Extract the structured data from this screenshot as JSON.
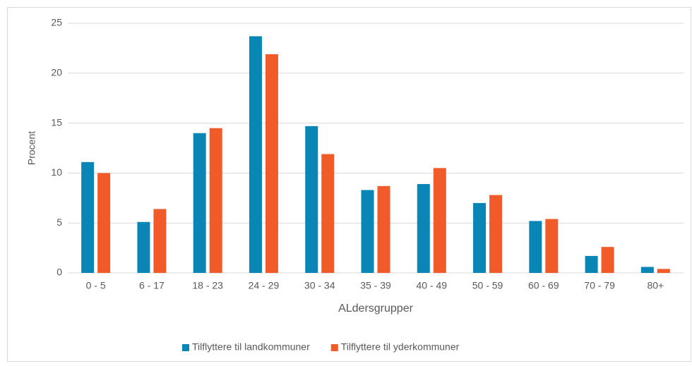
{
  "chart_data": {
    "type": "bar",
    "x_label": "ALdersgrupper",
    "y_label": "Procent",
    "categories": [
      "0 - 5",
      "6 - 17",
      "18 - 23",
      "24 - 29",
      "30 - 34",
      "35 - 39",
      "40 - 49",
      "50 - 59",
      "60 - 69",
      "70 - 79",
      "80+"
    ],
    "series": [
      {
        "name": "Tilflyttere til landkommuner",
        "color": "#0a86b6",
        "values": [
          11.1,
          5.1,
          14.0,
          23.7,
          14.7,
          8.3,
          8.9,
          7.0,
          5.2,
          1.7,
          0.6
        ]
      },
      {
        "name": "Tilflyttere til yderkommuner",
        "color": "#f15a29",
        "values": [
          10.0,
          6.4,
          14.5,
          21.9,
          11.9,
          8.7,
          10.5,
          7.8,
          5.4,
          2.6,
          0.4
        ]
      }
    ],
    "ylim": [
      0,
      25
    ],
    "yticks": [
      0,
      5,
      10,
      15,
      20,
      25
    ],
    "grid": true,
    "legend": "bottom"
  }
}
